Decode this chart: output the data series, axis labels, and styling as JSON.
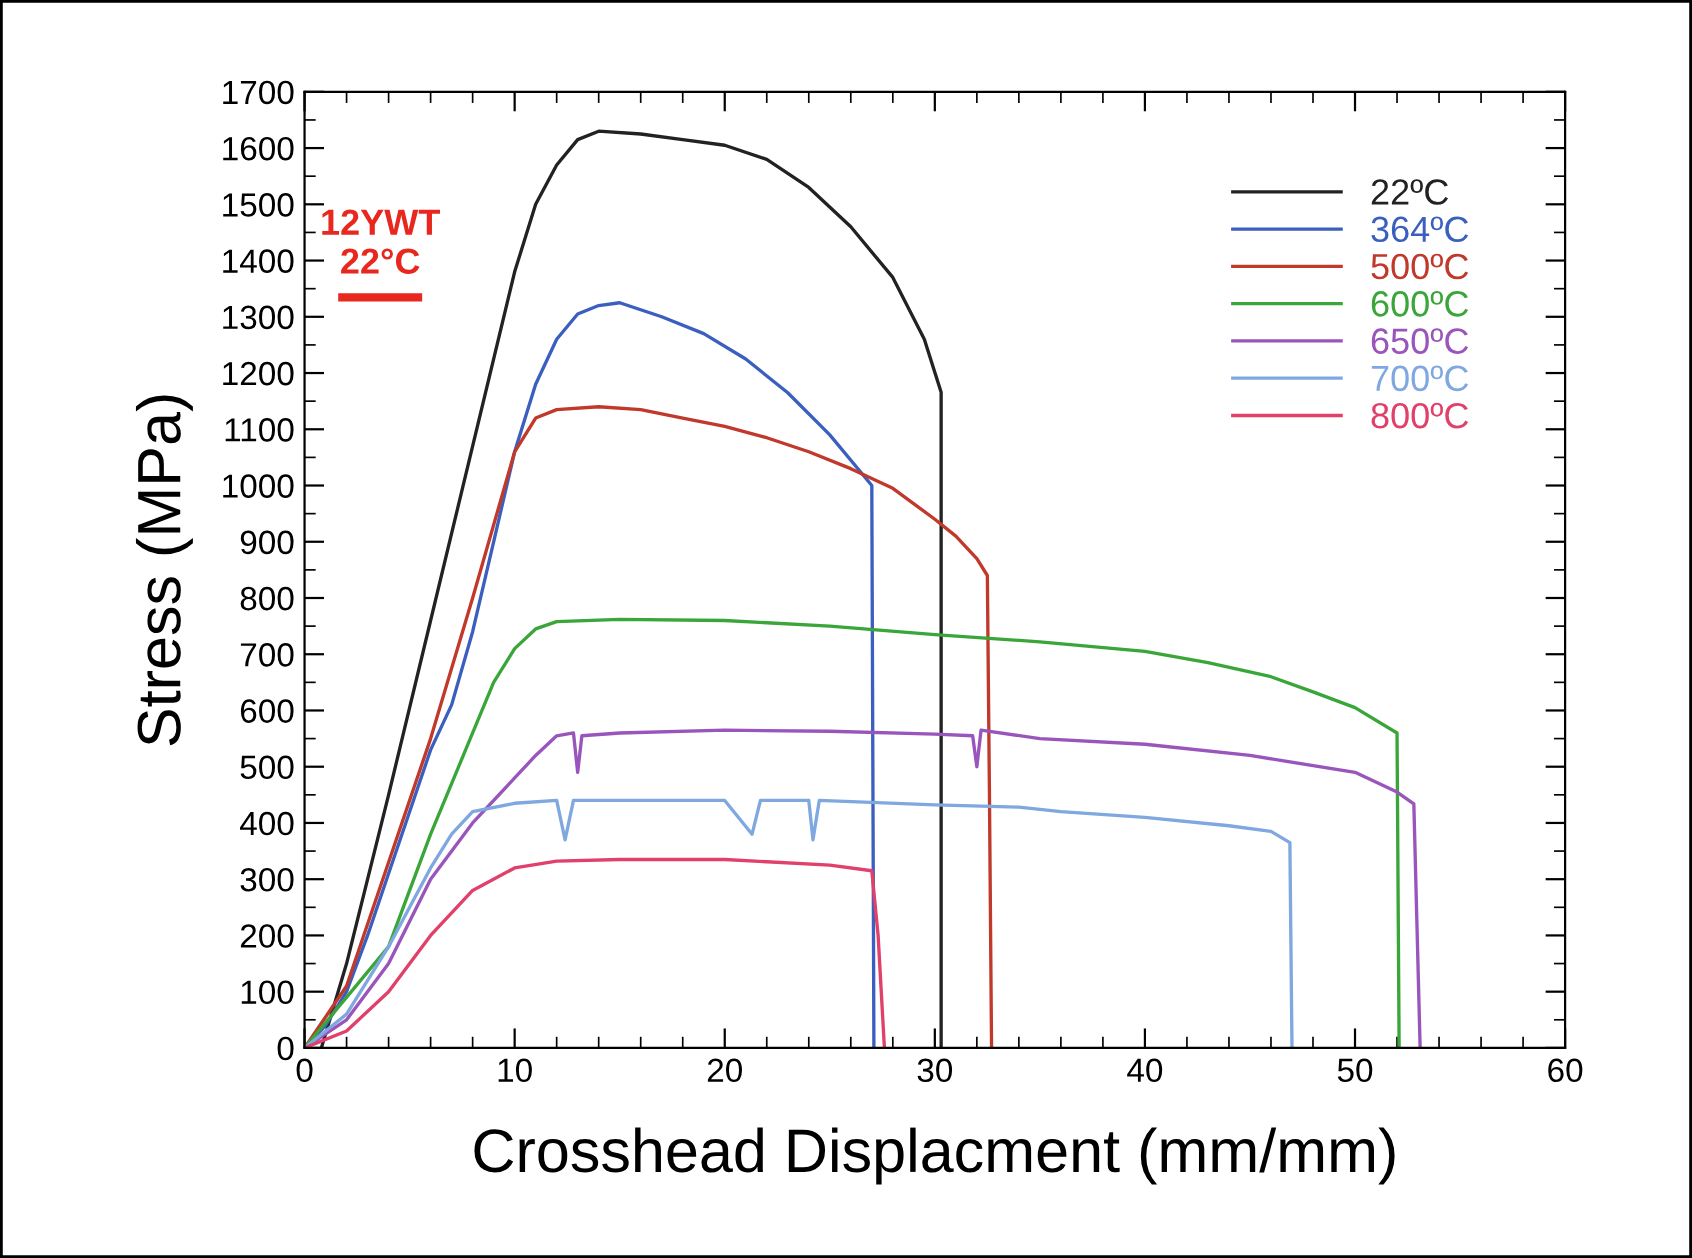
{
  "chart_data": {
    "type": "line",
    "xlabel": "Crosshead Displacment (mm/mm)",
    "ylabel": "Stress (MPa)",
    "xlim": [
      0,
      60
    ],
    "xticks": [
      0,
      10,
      20,
      30,
      40,
      50,
      60
    ],
    "ylim": [
      0,
      1700
    ],
    "yticks": [
      0,
      100,
      200,
      300,
      400,
      500,
      600,
      700,
      800,
      900,
      1000,
      1100,
      1200,
      1300,
      1400,
      1500,
      1600,
      1700
    ],
    "grid": false,
    "legend": "top right",
    "marker": "none",
    "line_style": "solid",
    "annotations": [
      "12YWT\n22°C"
    ],
    "series": [
      {
        "name": "22ºC",
        "color": "#222222",
        "x": [
          0.8,
          2,
          4,
          6,
          8,
          10,
          11,
          12,
          13,
          14,
          16,
          18,
          20,
          22,
          24,
          26,
          28,
          29.5,
          30.3,
          30.3
        ],
        "values": [
          0,
          150,
          450,
          760,
          1070,
          1380,
          1500,
          1570,
          1615,
          1630,
          1625,
          1615,
          1605,
          1580,
          1530,
          1460,
          1370,
          1260,
          1166,
          0
        ]
      },
      {
        "name": "364ºC",
        "color": "#3a5fbf",
        "x": [
          0,
          1,
          2,
          3,
          4,
          5,
          6,
          7,
          8,
          9,
          10,
          11,
          12,
          13,
          14,
          15,
          17,
          19,
          21,
          23,
          25,
          27,
          27,
          27.1
        ],
        "values": [
          0,
          40,
          100,
          200,
          310,
          420,
          530,
          610,
          740,
          900,
          1060,
          1180,
          1260,
          1305,
          1320,
          1325,
          1300,
          1270,
          1225,
          1165,
          1090,
          1000,
          1000,
          0
        ]
      },
      {
        "name": "500ºC",
        "color": "#c0392b",
        "x": [
          0,
          2,
          4,
          6,
          8,
          10,
          11,
          12,
          14,
          16,
          18,
          20,
          22,
          24,
          26,
          28,
          30,
          31,
          32,
          32.5,
          32.6,
          32.7
        ],
        "values": [
          0,
          110,
          330,
          550,
          800,
          1060,
          1120,
          1135,
          1140,
          1135,
          1120,
          1105,
          1085,
          1060,
          1030,
          995,
          940,
          910,
          870,
          840,
          450,
          0
        ]
      },
      {
        "name": "600ºC",
        "color": "#3aa63a",
        "x": [
          0,
          4,
          6,
          8,
          9,
          10,
          11,
          12,
          15,
          20,
          25,
          30,
          35,
          40,
          43,
          46,
          48,
          50,
          52,
          52.1
        ],
        "values": [
          0,
          180,
          380,
          560,
          650,
          710,
          745,
          758,
          762,
          760,
          750,
          735,
          722,
          705,
          685,
          660,
          633,
          605,
          560,
          0
        ]
      },
      {
        "name": "650ºC",
        "color": "#9955bb",
        "x": [
          0,
          2,
          4,
          6,
          8,
          10,
          11,
          12,
          12.8,
          13,
          13.2,
          15,
          20,
          25,
          30,
          31.8,
          32,
          32.2,
          35,
          40,
          45,
          50,
          52,
          52.8,
          53.1
        ],
        "values": [
          0,
          50,
          150,
          300,
          400,
          480,
          520,
          555,
          560,
          490,
          555,
          560,
          565,
          563,
          558,
          555,
          500,
          565,
          550,
          540,
          520,
          490,
          455,
          434,
          0
        ]
      },
      {
        "name": "700ºC",
        "color": "#7fa8e0",
        "x": [
          0,
          2,
          4,
          5,
          6,
          7,
          8,
          10,
          12,
          12.4,
          12.8,
          20,
          21.3,
          21.7,
          24,
          24.2,
          24.5,
          30,
          34,
          36,
          40,
          44,
          46,
          46.9,
          47
        ],
        "values": [
          0,
          60,
          180,
          250,
          320,
          380,
          420,
          435,
          440,
          370,
          440,
          440,
          380,
          440,
          440,
          370,
          440,
          432,
          428,
          420,
          410,
          395,
          385,
          365,
          0
        ]
      },
      {
        "name": "800ºC",
        "color": "#e0406a",
        "x": [
          0,
          2,
          4,
          6,
          8,
          10,
          12,
          15,
          20,
          25,
          27,
          27.3,
          27.6
        ],
        "values": [
          0,
          30,
          100,
          200,
          280,
          320,
          332,
          335,
          335,
          325,
          315,
          200,
          0
        ]
      }
    ]
  }
}
